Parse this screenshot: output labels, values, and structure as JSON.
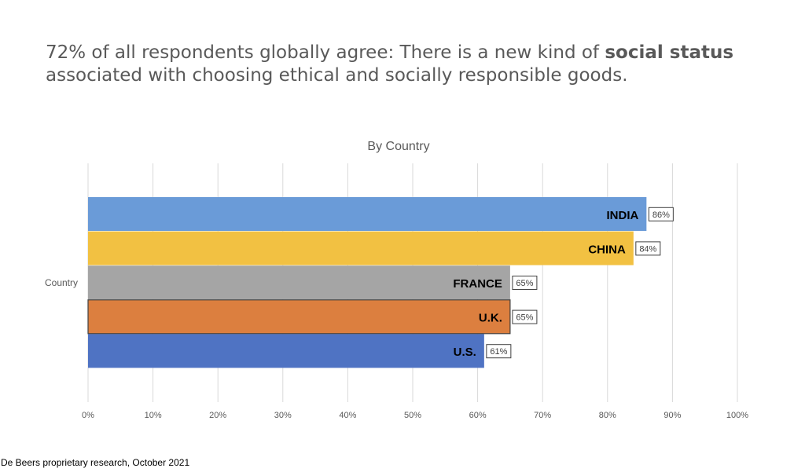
{
  "headline": {
    "part1": "72% of all respondents globally agree: There is a new kind of ",
    "bold": "social status",
    "part2": "associated with choosing ethical and socially responsible goods."
  },
  "source": "De Beers proprietary research, October 2021",
  "chart_data": {
    "type": "bar",
    "orientation": "horizontal",
    "title": "By Country",
    "category_axis_label": "Country",
    "xlim": [
      0,
      100
    ],
    "x_ticks": [
      "0%",
      "10%",
      "20%",
      "30%",
      "40%",
      "50%",
      "60%",
      "70%",
      "80%",
      "90%",
      "100%"
    ],
    "grid": true,
    "series": [
      {
        "name": "INDIA",
        "value": 86,
        "label": "86%",
        "color": "#6a9bd8"
      },
      {
        "name": "CHINA",
        "value": 84,
        "label": "84%",
        "color": "#f2c142"
      },
      {
        "name": "FRANCE",
        "value": 65,
        "label": "65%",
        "color": "#a5a5a5"
      },
      {
        "name": "U.K.",
        "value": 65,
        "label": "65%",
        "color": "#dc7f3f"
      },
      {
        "name": "U.S.",
        "value": 61,
        "label": "61%",
        "color": "#4f73c3"
      }
    ]
  }
}
